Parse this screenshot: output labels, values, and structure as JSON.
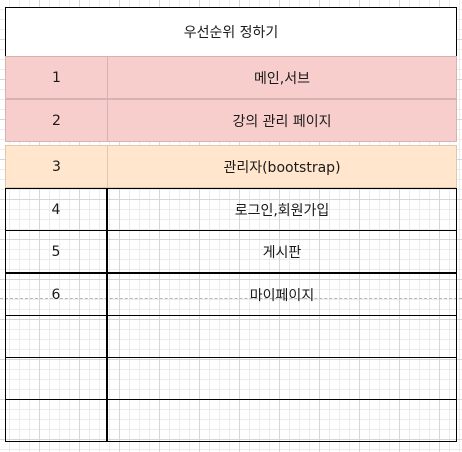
{
  "title": "우선순위 정하기",
  "rows": [
    {
      "num": "1",
      "name": "메인,서브",
      "style": "pink"
    },
    {
      "num": "2",
      "name": "강의 관리 페이지",
      "style": "pink"
    },
    {
      "num": "3",
      "name": "관리자(bootstrap)",
      "style": "peach"
    },
    {
      "num": "4",
      "name": "로그인,회원가입",
      "style": "plain"
    },
    {
      "num": "5",
      "name": "게시판",
      "style": "plain"
    },
    {
      "num": "6",
      "name": "마이페이지",
      "style": "plain"
    },
    {
      "num": "",
      "name": "",
      "style": "plain"
    },
    {
      "num": "",
      "name": "",
      "style": "plain"
    },
    {
      "num": "",
      "name": "",
      "style": "plain"
    }
  ]
}
